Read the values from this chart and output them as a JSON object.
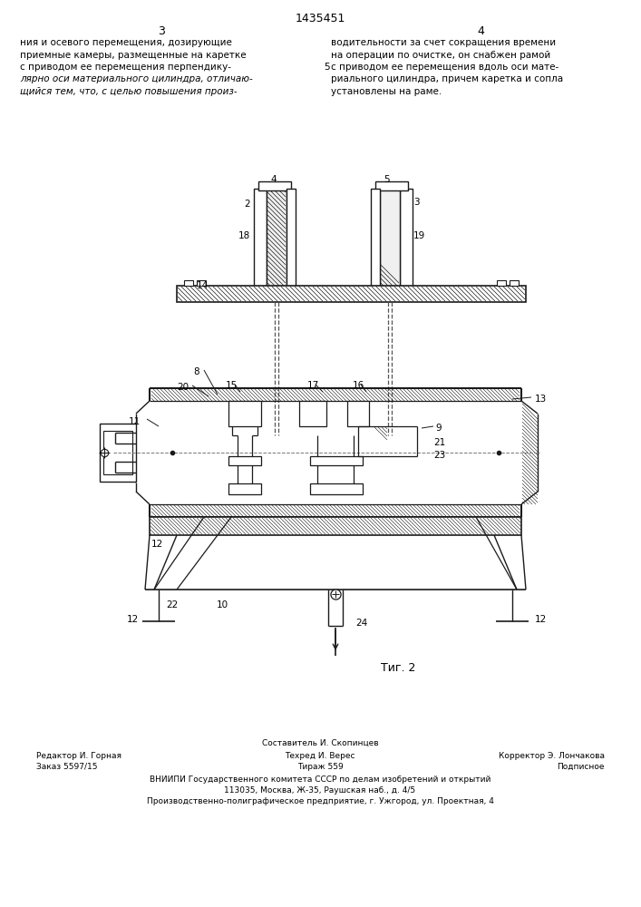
{
  "patent_number": "1435451",
  "page_left": "3",
  "page_right": "4",
  "text_left": "ния и осевого перемещения, дозирующие\nприемные камеры, размещенные на каретке\nс приводом ее перемещения перпендику-\nлярно оси материального цилиндра, отличаю-\nщийся тем, что, с целью повышения произ-",
  "text_right": "водительности за счет сокращения времени\nна операции по очистке, он снабжен рамой\nс приводом ее перемещения вдоль оси мате-\nриального цилиндра, причем каретка и сопла\nустановлены на раме.",
  "line_number": "5",
  "fig_caption": "Τиг. 2",
  "footer_line1": "Составитель И. Скопинцев",
  "footer_line2_left": "Редактор И. Горная",
  "footer_line2_middle": "Техред И. Верес",
  "footer_line2_right": "Корректор Э. Лончакова",
  "footer_line3_left": "Заказ 5597/15",
  "footer_line3_middle": "Тираж 559",
  "footer_line3_right": "Подписное",
  "footer_line4": "ВНИИПИ Государственного комитета СССР по делам изобретений и открытий",
  "footer_line5": "113035, Москва, Ж-35, Раушская наб., д. 4/5",
  "footer_line6": "Производственно-полиграфическое предприятие, г. Ужгород, ул. Проектная, 4",
  "bg_color": "#ffffff",
  "text_color": "#000000",
  "drawing_color": "#1a1a1a"
}
